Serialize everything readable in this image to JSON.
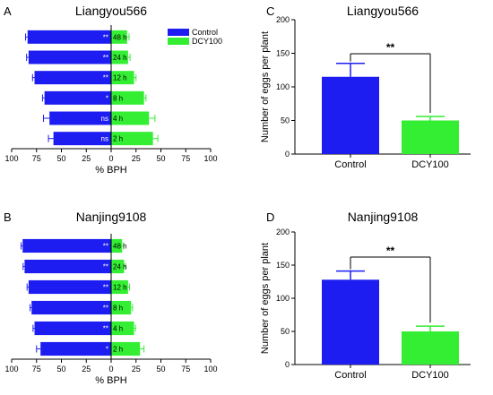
{
  "colors": {
    "control": "#1d1df2",
    "treatment": "#33ee33",
    "axis": "#000000"
  },
  "chart_data": [
    {
      "id": "A",
      "type": "bar",
      "orientation": "horizontal-diverging",
      "panel_label": "A",
      "title": "Liangyou566",
      "xlabel": "% BPH",
      "xticks": [
        "100",
        "75",
        "50",
        "25",
        "0",
        "25",
        "50",
        "75",
        "100"
      ],
      "xlim": [
        -100,
        100
      ],
      "legend": {
        "position": "top-right",
        "entries": [
          "Control",
          "DCY100"
        ]
      },
      "categories": [
        "48 h",
        "24 h",
        "12 h",
        "8 h",
        "4 h",
        "2 h"
      ],
      "significance": [
        "**",
        "**",
        "**",
        "*",
        "ns",
        "ns"
      ],
      "series": [
        {
          "name": "Control",
          "values": [
            84,
            83,
            77,
            67,
            62,
            58
          ],
          "errors": [
            2,
            2,
            2,
            2,
            6,
            5
          ]
        },
        {
          "name": "DCY100",
          "values": [
            16,
            17,
            23,
            33,
            38,
            42
          ],
          "errors": [
            2,
            2,
            2,
            2,
            6,
            5
          ]
        }
      ]
    },
    {
      "id": "B",
      "type": "bar",
      "orientation": "horizontal-diverging",
      "panel_label": "B",
      "title": "Nanjing9108",
      "xlabel": "% BPH",
      "xticks": [
        "100",
        "75",
        "50",
        "25",
        "0",
        "25",
        "50",
        "75",
        "100"
      ],
      "xlim": [
        -100,
        100
      ],
      "categories": [
        "48 h",
        "24 h",
        "12 h",
        "8 h",
        "4 h",
        "2 h"
      ],
      "significance": [
        "**",
        "**",
        "**",
        "**",
        "**",
        "*"
      ],
      "series": [
        {
          "name": "Control",
          "values": [
            89,
            87,
            83,
            80,
            77,
            71
          ],
          "errors": [
            1.5,
            1.5,
            1.5,
            1.5,
            1.5,
            4
          ]
        },
        {
          "name": "DCY100",
          "values": [
            11,
            13,
            17,
            20,
            23,
            29
          ],
          "errors": [
            1.5,
            1.5,
            1.5,
            1.5,
            1.5,
            4
          ]
        }
      ]
    },
    {
      "id": "C",
      "type": "bar",
      "panel_label": "C",
      "title": "Liangyou566",
      "ylabel": "Number of eggs per plant",
      "ylim": [
        0,
        200
      ],
      "yticks": [
        "0",
        "50",
        "100",
        "150",
        "200"
      ],
      "categories": [
        "Control",
        "DCY100"
      ],
      "values": [
        115,
        50
      ],
      "errors": [
        20,
        6
      ],
      "significance": "**"
    },
    {
      "id": "D",
      "type": "bar",
      "panel_label": "D",
      "title": "Nanjing9108",
      "ylabel": "Number of eggs per plant",
      "ylim": [
        0,
        200
      ],
      "yticks": [
        "0",
        "50",
        "100",
        "150",
        "200"
      ],
      "categories": [
        "Control",
        "DCY100"
      ],
      "values": [
        128,
        50
      ],
      "errors": [
        13,
        8
      ],
      "significance": "**"
    }
  ]
}
